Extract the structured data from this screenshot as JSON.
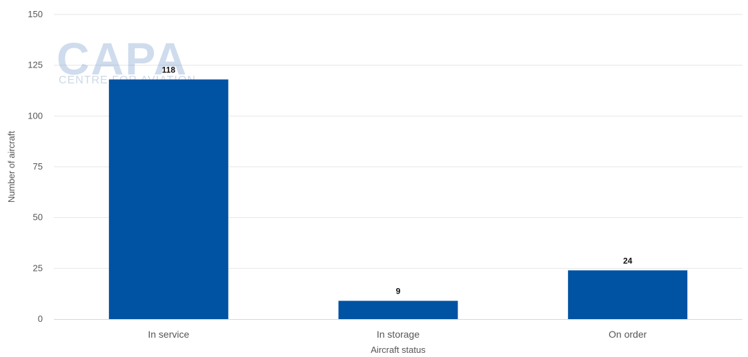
{
  "chart_data": {
    "type": "bar",
    "categories": [
      "In service",
      "In storage",
      "On order"
    ],
    "values": [
      118,
      9,
      24
    ],
    "data_labels": [
      "118",
      "9",
      "24"
    ],
    "xlabel": "Aircraft status",
    "ylabel": "Number of aircraft",
    "ylim": [
      0,
      150
    ],
    "yticks": [
      0,
      25,
      50,
      75,
      100,
      125,
      150
    ],
    "grid": true,
    "bar_color": "#0052a3"
  },
  "watermark": {
    "brand": "CAPA",
    "tagline": "CENTRE FOR AVIATION"
  }
}
